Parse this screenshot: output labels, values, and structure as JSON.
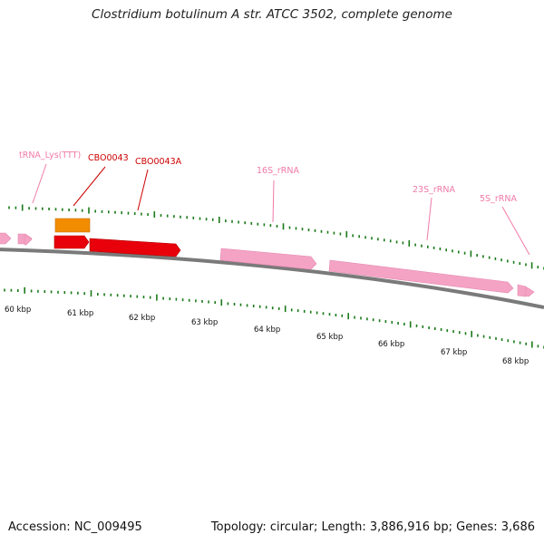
{
  "title": "Clostridium botulinum A str. ATCC 3502, complete genome",
  "footer": {
    "accession": "Accession: NC_009495",
    "stats": "Topology: circular; Length: 3,886,916 bp; Genes: 3,686"
  },
  "colors": {
    "backbone": "#7a7a7a",
    "rna": "#f4a3c4",
    "rna_label": "#f07aa8",
    "cds_red": "#e8000b",
    "cds_orange": "#f28c00",
    "cds_label": "#cc0000",
    "tick_green": "#1a7a1a"
  },
  "scale_labels": [
    "60 kbp",
    "61 kbp",
    "62 kbp",
    "63 kbp",
    "64 kbp",
    "65 kbp",
    "66 kbp",
    "67 kbp",
    "68 kbp"
  ],
  "features": [
    {
      "label": "tRNA_Lys(TTT)",
      "type": "rna"
    },
    {
      "label": "CBO0043",
      "type": "cds"
    },
    {
      "label": "CBO0043A",
      "type": "cds"
    },
    {
      "label": "16S_rRNA",
      "type": "rna"
    },
    {
      "label": "23S_rRNA",
      "type": "rna"
    },
    {
      "label": "5S_rRNA",
      "type": "rna"
    }
  ]
}
